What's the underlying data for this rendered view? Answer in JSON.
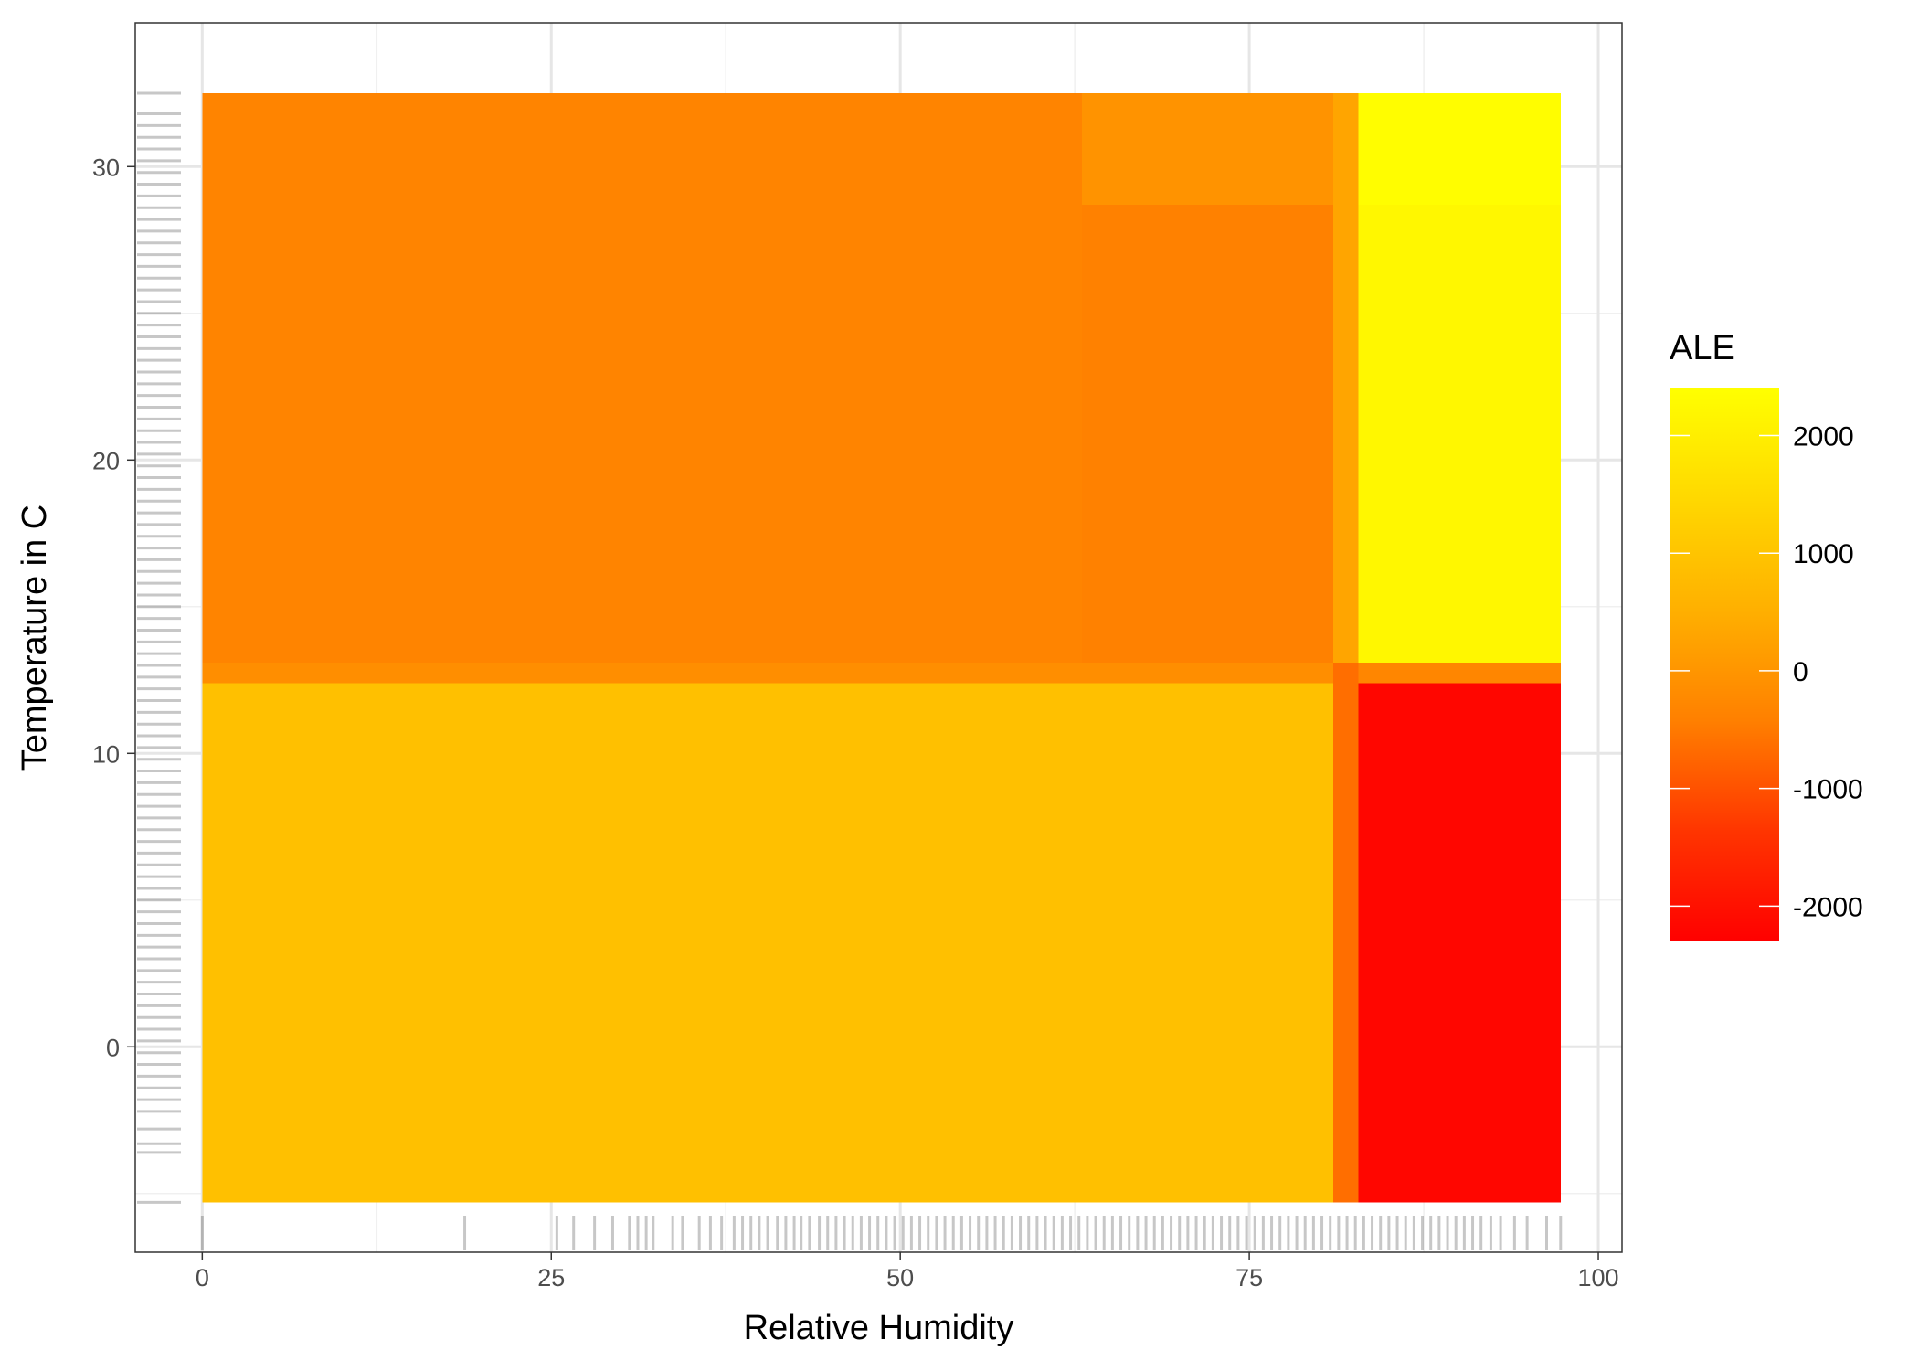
{
  "chart_data": {
    "type": "heatmap",
    "title": "",
    "xlabel": "Relative Humidity",
    "ylabel": "Temperature in C",
    "xlim": [
      -4.8,
      101.7
    ],
    "ylim": [
      -7.0,
      34.9
    ],
    "x_ticks": [
      0,
      25,
      50,
      75,
      100
    ],
    "x_tick_labels": [
      "0",
      "25",
      "50",
      "75",
      "100"
    ],
    "y_ticks": [
      0,
      10,
      20,
      30
    ],
    "y_tick_labels": [
      "0",
      "10",
      "20",
      "30"
    ],
    "grid": true,
    "theme": "bw",
    "legend": {
      "title": "ALE",
      "position": "right",
      "min": -2300,
      "max": 2400,
      "breaks": [
        2000,
        1000,
        0,
        -1000,
        -2000
      ],
      "break_labels": [
        "2000",
        "1000",
        "0",
        "-1000",
        "-2000"
      ],
      "colors": [
        "#FF0000",
        "#FF3500",
        "#FF8000",
        "#FFB000",
        "#FFD800",
        "#FFFF00"
      ]
    },
    "cells": [
      {
        "x0": 0,
        "x1": 63,
        "y0": 13.1,
        "y1": 32.5,
        "ale": -350
      },
      {
        "x0": 63,
        "x1": 81,
        "y0": 28.7,
        "y1": 32.5,
        "ale": -50
      },
      {
        "x0": 63,
        "x1": 81,
        "y0": 13.1,
        "y1": 28.7,
        "ale": -400
      },
      {
        "x0": 81,
        "x1": 82.8,
        "y0": 13.1,
        "y1": 32.5,
        "ale": 300
      },
      {
        "x0": 82.8,
        "x1": 97.3,
        "y0": 28.7,
        "y1": 32.5,
        "ale": 2350
      },
      {
        "x0": 82.8,
        "x1": 97.3,
        "y0": 13.1,
        "y1": 28.7,
        "ale": 2200
      },
      {
        "x0": 0,
        "x1": 81,
        "y0": 12.4,
        "y1": 13.1,
        "ale": -150
      },
      {
        "x0": 0,
        "x1": 81,
        "y0": -5.3,
        "y1": 12.4,
        "ale": 900
      },
      {
        "x0": 81,
        "x1": 82.8,
        "y0": -5.3,
        "y1": 13.1,
        "ale": -650
      },
      {
        "x0": 82.8,
        "x1": 97.3,
        "y0": 12.4,
        "y1": 13.1,
        "ale": -300
      },
      {
        "x0": 82.8,
        "x1": 97.3,
        "y0": -5.3,
        "y1": 12.4,
        "ale": -2200
      }
    ],
    "x_rug": [
      0,
      18.8,
      25.4,
      26.6,
      28.1,
      29.4,
      30.6,
      31.2,
      31.8,
      32.3,
      33.7,
      34.4,
      35.6,
      36.4,
      37.2,
      38.1,
      38.7,
      39.3,
      39.9,
      40.5,
      41.2,
      41.8,
      42.4,
      42.9,
      43.5,
      44.2,
      44.8,
      45.4,
      46.0,
      46.6,
      47.2,
      47.8,
      48.4,
      49.0,
      49.6,
      50.2,
      50.8,
      51.4,
      52.0,
      52.6,
      53.2,
      53.8,
      54.4,
      55.0,
      55.6,
      56.2,
      56.8,
      57.4,
      58.0,
      58.6,
      59.2,
      59.8,
      60.4,
      61.0,
      61.6,
      62.2,
      62.8,
      63.4,
      64.0,
      64.6,
      65.2,
      65.8,
      66.4,
      67.0,
      67.6,
      68.2,
      68.8,
      69.4,
      70.0,
      70.6,
      71.2,
      71.8,
      72.4,
      73.0,
      73.6,
      74.2,
      74.8,
      75.4,
      76.0,
      76.6,
      77.2,
      77.8,
      78.4,
      79.0,
      79.6,
      80.2,
      80.8,
      81.4,
      82.0,
      82.6,
      83.2,
      83.8,
      84.4,
      85.0,
      85.6,
      86.2,
      86.8,
      87.4,
      88.0,
      88.6,
      89.2,
      89.8,
      90.4,
      91.0,
      91.6,
      92.3,
      93.0,
      94.0,
      94.9,
      96.3,
      97.3
    ],
    "y_rug": [
      -5.3,
      -3.6,
      -3.3,
      -2.8,
      -2.2,
      -1.8,
      -1.4,
      -1.0,
      -0.6,
      -0.2,
      0.2,
      0.6,
      1.0,
      1.4,
      1.8,
      2.2,
      2.6,
      3.0,
      3.4,
      3.8,
      4.2,
      4.6,
      5.0,
      5.4,
      5.8,
      6.2,
      6.6,
      7.0,
      7.4,
      7.8,
      8.2,
      8.6,
      9.0,
      9.4,
      9.8,
      10.2,
      10.6,
      11.0,
      11.4,
      11.8,
      12.2,
      12.6,
      13.0,
      13.4,
      13.8,
      14.2,
      14.6,
      15.0,
      15.4,
      15.8,
      16.2,
      16.6,
      17.0,
      17.4,
      17.8,
      18.2,
      18.6,
      19.0,
      19.4,
      19.8,
      20.2,
      20.6,
      21.0,
      21.4,
      21.8,
      22.2,
      22.6,
      23.0,
      23.4,
      23.8,
      24.2,
      24.6,
      25.0,
      25.4,
      25.8,
      26.2,
      26.6,
      27.0,
      27.4,
      27.8,
      28.2,
      28.6,
      29.0,
      29.4,
      29.8,
      30.2,
      30.6,
      31.0,
      31.4,
      31.8,
      32.5
    ]
  }
}
